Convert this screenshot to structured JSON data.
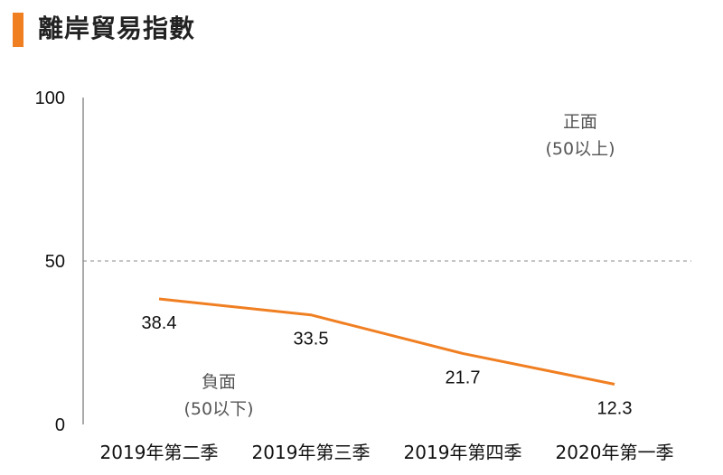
{
  "chart_data": {
    "type": "line",
    "title": "離岸貿易指數",
    "categories": [
      "2019年第二季",
      "2019年第三季",
      "2019年第四季",
      "2020年第一季"
    ],
    "series": [
      {
        "values": [
          38.4,
          33.5,
          21.7,
          12.3
        ],
        "color": "#f07f22"
      }
    ],
    "ylim": [
      0,
      100
    ],
    "yticks": [
      0,
      50,
      100
    ],
    "reference_line": {
      "value": 50,
      "style": "dashed"
    },
    "annotations": {
      "positive_line1": "正面",
      "positive_line2": "(50以上)",
      "negative_line1": "負面",
      "negative_line2": "(50以下)"
    },
    "accent_color": "#f07f22",
    "grid": false,
    "legend": "none"
  }
}
